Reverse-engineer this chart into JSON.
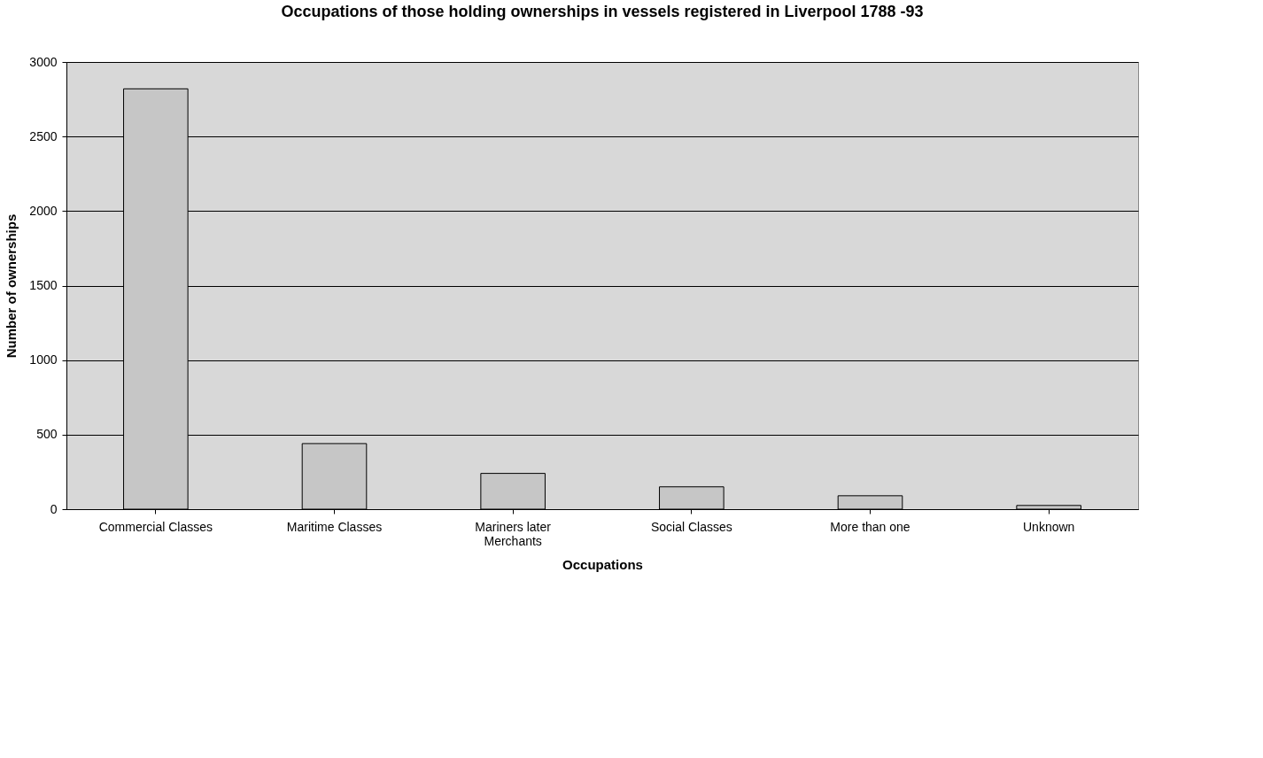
{
  "chart_data": {
    "type": "bar",
    "title": "Occupations of those holding ownerships in vessels registered in Liverpool 1788 -93",
    "xlabel": "Occupations",
    "ylabel": "Number of ownerships",
    "categories": [
      "Commercial Classes",
      "Maritime Classes",
      "Mariners later Merchants",
      "Social Classes",
      "More than one",
      "Unknown"
    ],
    "values": [
      2820,
      440,
      240,
      150,
      90,
      25
    ],
    "color": "#c6c6c6",
    "ylim": [
      0,
      3000
    ],
    "yticks": [
      0,
      500,
      1000,
      1500,
      2000,
      2500,
      3000
    ],
    "grid": "y"
  }
}
